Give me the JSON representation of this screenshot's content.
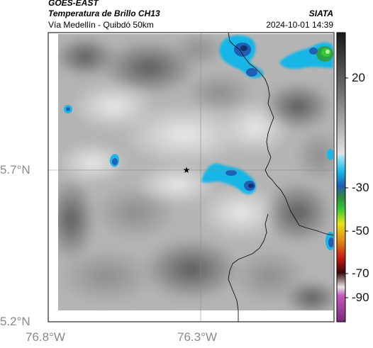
{
  "header": {
    "satellite": "GOES-EAST",
    "product": "Temperatura de Brillo CH13",
    "route": "Vía Medellín - Quibdó 50km",
    "source": "SIATA",
    "datetime": "2024-10-01 14:39"
  },
  "map": {
    "lat_ticks": [
      {
        "value": 5.7,
        "label": "5.7°N"
      },
      {
        "value": 5.2,
        "label": "5.2°N"
      }
    ],
    "lon_ticks": [
      {
        "value": -76.8,
        "label": "76.8°W"
      },
      {
        "value": -76.3,
        "label": "76.3°W"
      }
    ],
    "gridlines": true,
    "marker": {
      "symbol": "star",
      "lon": -76.345,
      "lat": 5.7
    }
  },
  "colorbar": {
    "tick_labels": [
      "20",
      "-30",
      "-50",
      "-70",
      "-90"
    ],
    "colors": {
      "warm": "#d8d8d8",
      "cold_gray": "#2a2a2a",
      "cyan": "#19b6e6",
      "blue": "#1f5fb5",
      "green": "#35c935",
      "yellow": "#e6e21a",
      "orange": "#e08a17",
      "red": "#c41a12",
      "magenta": "#c656c0"
    }
  }
}
